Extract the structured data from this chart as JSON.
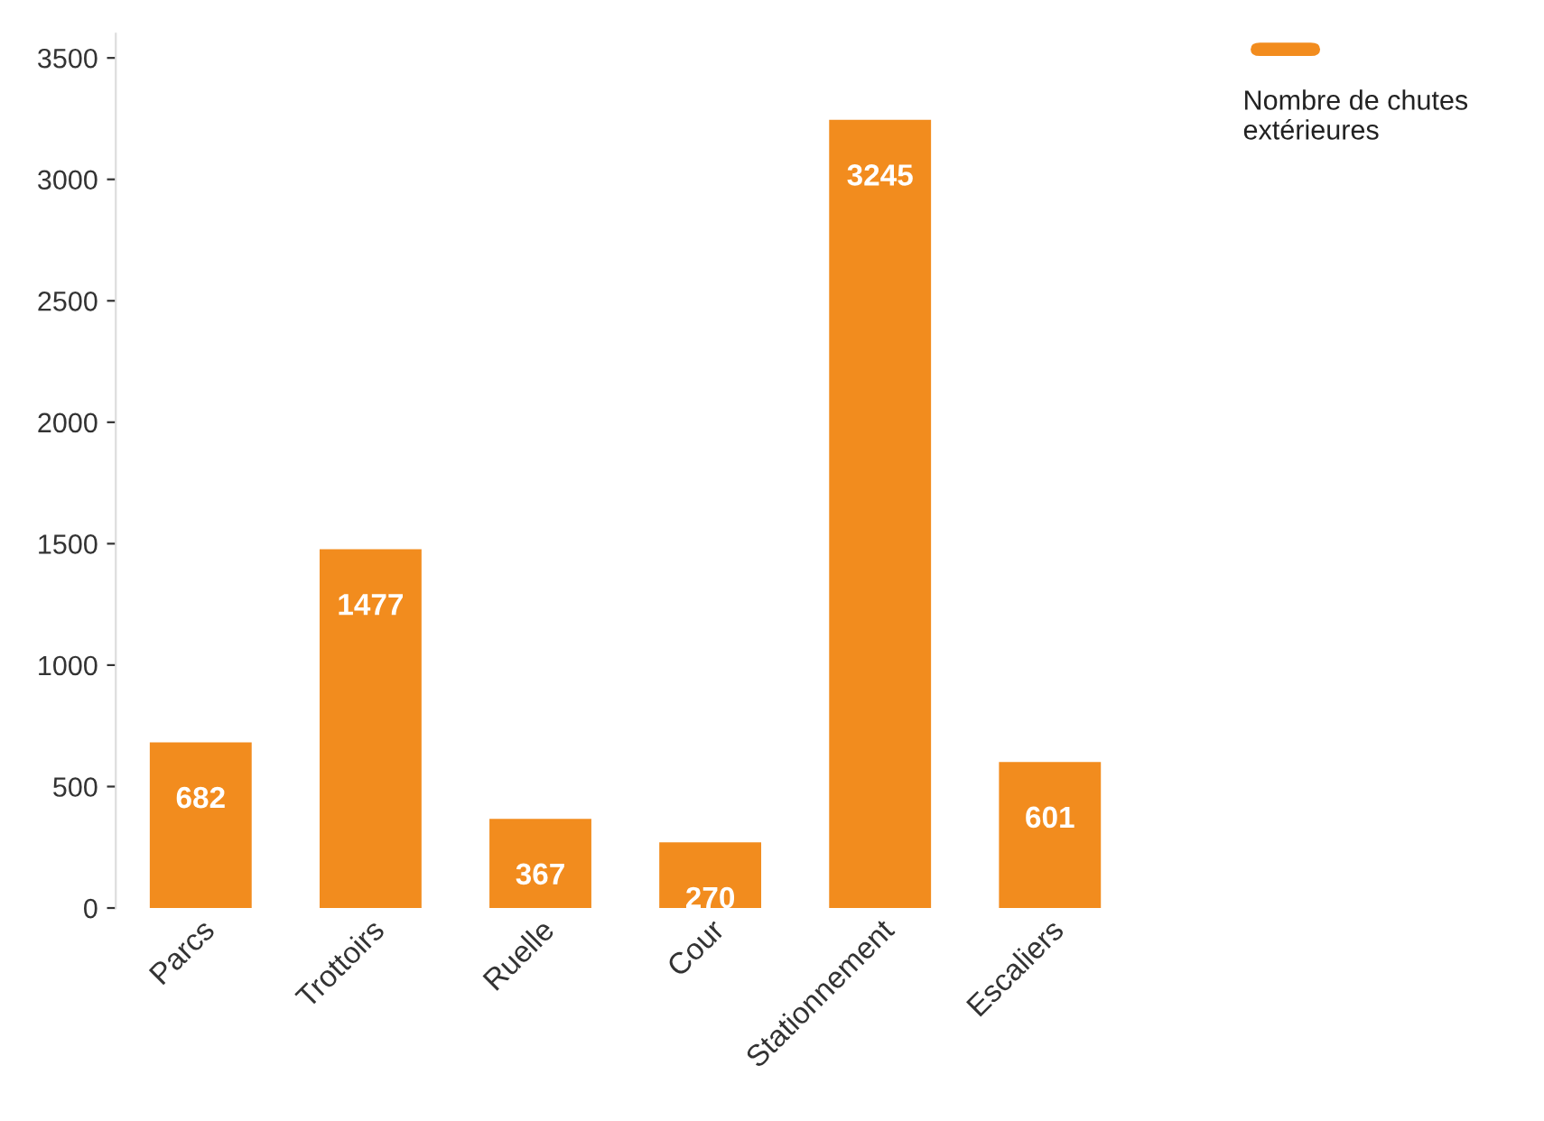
{
  "chart_data": {
    "type": "bar",
    "categories": [
      "Parcs",
      "Trottoirs",
      "Ruelle",
      "Cour",
      "Stationnement",
      "Escaliers"
    ],
    "series": [
      {
        "name": "Nombre de chutes extérieures",
        "color": "#f28c1e",
        "values": [
          682,
          1477,
          367,
          270,
          3245,
          601
        ]
      }
    ],
    "ylim": [
      0,
      3600
    ],
    "yticks": [
      0,
      500,
      1000,
      1500,
      2000,
      2500,
      3000,
      3500
    ],
    "data_labels": true,
    "grid": false,
    "legend": "top right"
  }
}
